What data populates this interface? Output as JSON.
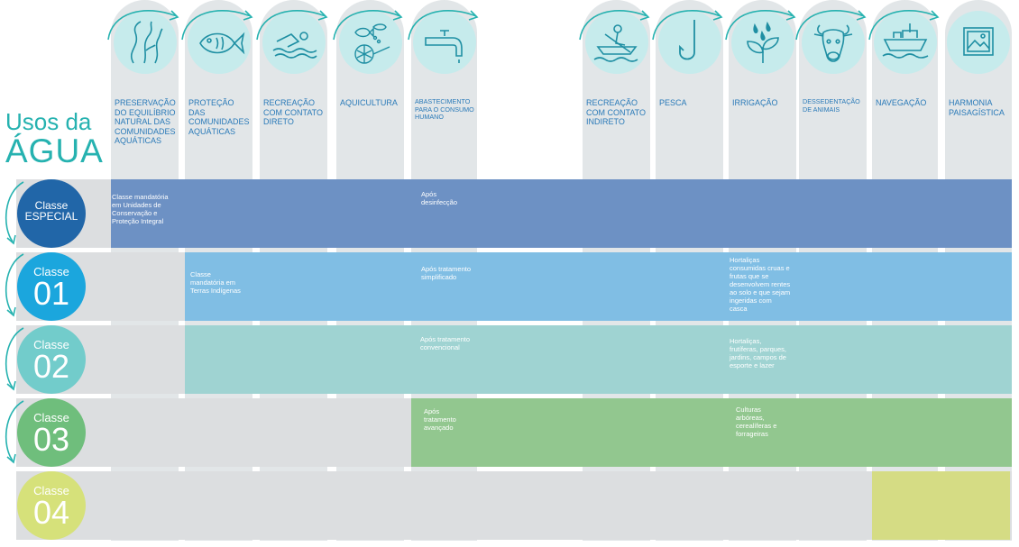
{
  "title": {
    "line1": "Usos da",
    "line2": "ÁGUA"
  },
  "columns": [
    {
      "name": "col-preservacao",
      "label": "PRESERVAÇÃO DO EQUILÍBRIO NATURAL DAS COMUNIDADES AQUÁTICAS",
      "icon": "seaweed-icon"
    },
    {
      "name": "col-protecao",
      "label": "PROTEÇÃO DAS COMUNIDADES AQUÁTICAS",
      "icon": "fish-icon"
    },
    {
      "name": "col-recreacao-direto",
      "label": "RECREAÇÃO COM CONTATO DIRETO",
      "icon": "swimmer-icon"
    },
    {
      "name": "col-aquicultura",
      "label": "AQUICULTURA",
      "icon": "fishbowl-net-icon"
    },
    {
      "name": "col-abastecimento",
      "label": "ABASTECIMENTO PARA O CONSUMO HUMANO",
      "icon": "faucet-icon"
    },
    {
      "name": "col-recreacao-indireto",
      "label": "RECREAÇÃO COM CONTATO INDIRETO",
      "icon": "rowboat-icon"
    },
    {
      "name": "col-pesca",
      "label": "PESCA",
      "icon": "fishhook-icon"
    },
    {
      "name": "col-irrigacao",
      "label": "IRRIGAÇÃO",
      "icon": "plant-drops-icon"
    },
    {
      "name": "col-dessedentacao",
      "label": "DESSEDENTAÇÃO DE ANIMAIS",
      "icon": "cow-icon"
    },
    {
      "name": "col-navegacao",
      "label": "NAVEGAÇÃO",
      "icon": "ship-icon"
    },
    {
      "name": "col-harmonia",
      "label": "HARMONIA PAISAGÍSTICA",
      "icon": "landscape-picture-icon"
    }
  ],
  "classes": [
    {
      "name": "classe-especial",
      "label": "Classe",
      "num": "ESPECIAL",
      "color": "#2166a8"
    },
    {
      "name": "classe-01",
      "label": "Classe",
      "num": "01",
      "color": "#1ba6dd"
    },
    {
      "name": "classe-02",
      "label": "Classe",
      "num": "02",
      "color": "#72cccb"
    },
    {
      "name": "classe-03",
      "label": "Classe",
      "num": "03",
      "color": "#6fbe7c"
    },
    {
      "name": "classe-04",
      "label": "Classe",
      "num": "04",
      "color": "#d6e17a"
    }
  ],
  "notes": {
    "especial_preservacao": "Classe mandatória em Unidades de Conservação e Proteção Integral",
    "especial_abastecimento": "Após desinfecção",
    "c1_protecao": "Classe mandatória em Terras Indígenas",
    "c1_abastecimento": "Após tratamento simplificado",
    "c1_irrigacao": "Hortaliças consumidas cruas e frutas que se desenvolvem rentes ao solo e que sejam ingeridas com casca",
    "c2_abastecimento": "Após tratamento convencional",
    "c2_irrigacao": "Hortaliças, frutíferas, parques, jardins, campos de esporte e lazer",
    "c3_abastecimento": "Após tratamento avançado",
    "c3_irrigacao": "Culturas arbóreas, cerealíferas e forrageiras"
  },
  "colors": {
    "title": "#26b2b0",
    "column_bg": "#e2e6e8",
    "icon_circle": "#c6ebec",
    "icon_line": "#1f8fa3",
    "header_text": "#2a7ab8",
    "especial_fill": "#4e7bbd",
    "c1_fill": "#5db2e4",
    "c2_fill": "#8bcfcd",
    "c3_fill": "#7fc07a",
    "c4_fill": "#d4dc7a"
  }
}
